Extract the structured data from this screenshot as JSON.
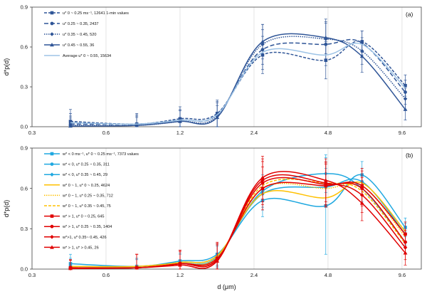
{
  "chart_data": [
    {
      "type": "line",
      "panel": "(a)",
      "xlabel": "",
      "ylabel": "d*p(d)",
      "x_scale": "log",
      "xlim": [
        0.3,
        11.5
      ],
      "ylim": [
        0,
        0.9
      ],
      "xticks": [
        "0.3",
        "0.6",
        "1.2",
        "2.4",
        "4.8",
        "9.6"
      ],
      "yticks": [
        "0.0",
        "0.3",
        "0.6",
        "0.9"
      ],
      "legend_position": "top-left",
      "series": [
        {
          "name": "u* 0 ~ 0.25 ms⁻¹, 12641 1-min values",
          "color": "#2f5597",
          "dash": "4,2",
          "marker": "square",
          "x": [
            0.43,
            0.8,
            1.2,
            1.7,
            2.6,
            4.7,
            6.6,
            9.9
          ],
          "y": [
            0.04,
            0.02,
            0.06,
            0.1,
            0.54,
            0.5,
            0.64,
            0.31
          ],
          "err": [
            0.09,
            0.08,
            0.09,
            0.1,
            0.14,
            0.14,
            0.08,
            0.08
          ]
        },
        {
          "name": "u* 0.25 ~ 0.35, 2437",
          "color": "#2f5597",
          "dash": "6,3",
          "marker": "circle",
          "x": [
            0.43,
            0.8,
            1.2,
            1.7,
            2.6,
            4.7,
            6.6,
            9.9
          ],
          "y": [
            0.02,
            0.02,
            0.05,
            0.09,
            0.58,
            0.62,
            0.63,
            0.26
          ],
          "err": [
            0.08,
            0.07,
            0.08,
            0.1,
            0.15,
            0.16,
            0.09,
            0.09
          ]
        },
        {
          "name": "u* 0.35 ~ 0.45, 520",
          "color": "#2f5597",
          "dash": "1.5,1.5",
          "marker": "diamond",
          "x": [
            0.43,
            0.8,
            1.2,
            1.7,
            2.6,
            4.7,
            6.6,
            9.9
          ],
          "y": [
            0.01,
            0.01,
            0.04,
            0.08,
            0.62,
            0.66,
            0.57,
            0.21
          ],
          "err": [
            0.07,
            0.07,
            0.08,
            0.1,
            0.15,
            0.15,
            0.1,
            0.08
          ]
        },
        {
          "name": "u* 0.45 ~ 0.55, 36",
          "color": "#2f5597",
          "dash": "",
          "marker": "triangle",
          "x": [
            0.43,
            0.8,
            1.2,
            1.7,
            2.6,
            4.7,
            6.6,
            9.9
          ],
          "y": [
            0.005,
            0.01,
            0.04,
            0.07,
            0.64,
            0.67,
            0.53,
            0.13
          ],
          "err": [
            0.06,
            0.06,
            0.08,
            0.09,
            0.13,
            0.12,
            0.12,
            0.08
          ]
        },
        {
          "name": "Average u* 0 ~ 0.55, 15634",
          "color": "#9dc3e6",
          "dash": "",
          "marker": "none",
          "x": [
            0.43,
            0.8,
            1.2,
            1.7,
            2.6,
            4.7,
            6.6,
            9.9
          ],
          "y": [
            0.03,
            0.02,
            0.05,
            0.09,
            0.56,
            0.54,
            0.62,
            0.29
          ],
          "err": []
        }
      ]
    },
    {
      "type": "line",
      "panel": "(b)",
      "xlabel": "d (μm)",
      "ylabel": "d*p(d)",
      "x_scale": "log",
      "xlim": [
        0.3,
        11.5
      ],
      "ylim": [
        0,
        0.9
      ],
      "xticks": [
        "0.3",
        "0.6",
        "1.2",
        "2.4",
        "4.8",
        "9.6"
      ],
      "yticks": [
        "0.0",
        "0.3",
        "0.6",
        "0.9"
      ],
      "legend_position": "top-left",
      "series": [
        {
          "name": "w* < 0 ms⁻¹, u* 0 ~ 0.25 ms⁻¹, 7373 values",
          "color": "#1fa8e0",
          "dash": "",
          "marker": "square",
          "x": [
            0.43,
            0.8,
            1.2,
            1.7,
            2.6,
            4.7,
            6.6,
            9.9
          ],
          "y": [
            0.04,
            0.02,
            0.06,
            0.11,
            0.51,
            0.47,
            0.7,
            0.31
          ],
          "err": [
            0.07,
            0.06,
            0.08,
            0.08,
            0.12,
            0.36,
            0.1,
            0.07
          ]
        },
        {
          "name": "w* < 0, u* 0.25 ~ 0.35, 311",
          "color": "#1fa8e0",
          "dash": "",
          "marker": "circle",
          "x": [
            0.43,
            0.8,
            1.2,
            1.7,
            2.6,
            4.7,
            6.6,
            9.9
          ],
          "y": [
            0.02,
            0.02,
            0.05,
            0.1,
            0.56,
            0.61,
            0.65,
            0.26
          ],
          "err": [
            0.06,
            0.06,
            0.07,
            0.08,
            0.12,
            0.14,
            0.1,
            0.08
          ]
        },
        {
          "name": "w* < 0, u* 0.35 ~ 0.45, 29",
          "color": "#1fa8e0",
          "dash": "",
          "marker": "diamond",
          "x": [
            0.43,
            0.8,
            1.2,
            1.7,
            2.6,
            4.7,
            6.6,
            9.9
          ],
          "y": [
            0.01,
            0.01,
            0.04,
            0.09,
            0.58,
            0.71,
            0.6,
            0.2
          ],
          "err": [
            0.06,
            0.06,
            0.07,
            0.08,
            0.12,
            0.14,
            0.1,
            0.08
          ]
        },
        {
          "name": "w* 0 ~ 1, u* 0 ~ 0.25, 4624",
          "color": "#ffc000",
          "dash": "",
          "marker": "none",
          "x": [
            0.43,
            0.8,
            1.2,
            1.7,
            2.6,
            4.7,
            6.6,
            9.9
          ],
          "y": [
            0.02,
            0.02,
            0.05,
            0.1,
            0.56,
            0.53,
            0.64,
            0.28
          ],
          "err": []
        },
        {
          "name": "w* 0 ~ 1, u* 0.25 ~ 0.35, 712",
          "color": "#ffc000",
          "dash": "1.5,1.5",
          "marker": "none",
          "x": [
            0.43,
            0.8,
            1.2,
            1.7,
            2.6,
            4.7,
            6.6,
            9.9
          ],
          "y": [
            0.01,
            0.01,
            0.04,
            0.09,
            0.6,
            0.6,
            0.62,
            0.24
          ],
          "err": []
        },
        {
          "name": "w* 0 ~ 1, u* 0.35 ~ 0.45, 75",
          "color": "#ffc000",
          "dash": "4,2",
          "marker": "none",
          "x": [
            0.43,
            0.8,
            1.2,
            1.7,
            2.6,
            4.7,
            6.6,
            9.9
          ],
          "y": [
            0.01,
            0.01,
            0.04,
            0.08,
            0.62,
            0.64,
            0.58,
            0.19
          ],
          "err": []
        },
        {
          "name": "w* > 1, u* 0 ~ 0.25, 645",
          "color": "#e00000",
          "dash": "",
          "marker": "square",
          "x": [
            0.43,
            0.8,
            1.2,
            1.7,
            2.6,
            4.7,
            6.6,
            9.9
          ],
          "y": [
            0.01,
            0.01,
            0.04,
            0.08,
            0.6,
            0.62,
            0.62,
            0.26
          ],
          "err": [
            0.06,
            0.1,
            0.1,
            0.12,
            0.16,
            0.16,
            0.13,
            0.09
          ]
        },
        {
          "name": "w* > 1, u* 0.25 ~ 0.35, 1404",
          "color": "#e00000",
          "dash": "",
          "marker": "circle",
          "x": [
            0.43,
            0.8,
            1.2,
            1.7,
            2.6,
            4.7,
            6.6,
            9.9
          ],
          "y": [
            0.01,
            0.01,
            0.04,
            0.07,
            0.64,
            0.63,
            0.6,
            0.2
          ],
          "err": [
            0.06,
            0.1,
            0.1,
            0.12,
            0.16,
            0.16,
            0.13,
            0.09
          ]
        },
        {
          "name": "w*>1, u* 0.35~ 0.45, 426",
          "color": "#e00000",
          "dash": "",
          "marker": "diamond",
          "x": [
            0.43,
            0.8,
            1.2,
            1.7,
            2.6,
            4.7,
            6.6,
            9.9
          ],
          "y": [
            0.005,
            0.01,
            0.04,
            0.07,
            0.66,
            0.64,
            0.55,
            0.16
          ],
          "err": [
            0.06,
            0.1,
            0.1,
            0.12,
            0.16,
            0.16,
            0.13,
            0.09
          ]
        },
        {
          "name": "w* > 1, u* > 0.45, 26",
          "color": "#e00000",
          "dash": "",
          "marker": "triangle",
          "x": [
            0.43,
            0.8,
            1.2,
            1.7,
            2.6,
            4.7,
            6.6,
            9.9
          ],
          "y": [
            0.005,
            0.01,
            0.03,
            0.06,
            0.68,
            0.66,
            0.49,
            0.12
          ],
          "err": [
            0.06,
            0.1,
            0.1,
            0.12,
            0.16,
            0.16,
            0.13,
            0.09
          ]
        }
      ]
    }
  ]
}
